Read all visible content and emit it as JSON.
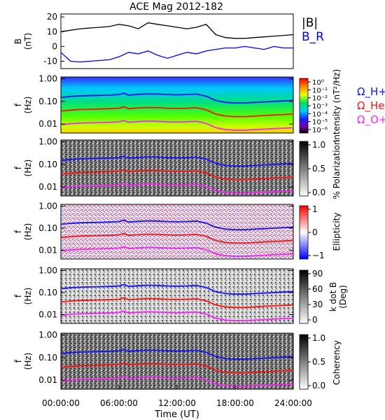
{
  "title": "ACE Mag 2012-182",
  "xlabel": "Time (UT)",
  "time_ticks": [
    "00:00:00",
    "06:00:00",
    "12:00:00",
    "18:00:00",
    "24:00:00"
  ],
  "freq_ticks": [
    "1.00",
    "0.10",
    "0.01"
  ],
  "colors": {
    "b_total": "#000000",
    "b_r": "#0000ff",
    "h_plus": "#1010ff",
    "he_plus": "#ff1010",
    "o_plus": "#ff20ff"
  },
  "chart_data": [
    {
      "type": "line",
      "name": "magnetic-field",
      "ylabel_top": "B",
      "ylabel_unit": "(nT)",
      "ylim": [
        -15,
        22
      ],
      "y_ticks": [
        20,
        10,
        0,
        -10
      ],
      "x_hours_range": [
        0,
        24
      ],
      "series": [
        {
          "name": "|B|",
          "x": [
            0,
            1,
            2,
            3,
            4,
            5,
            6,
            7,
            8,
            9,
            10,
            11,
            12,
            13,
            14,
            15,
            16,
            17,
            18,
            19,
            20,
            21,
            22,
            23,
            24
          ],
          "values": [
            10,
            11,
            12,
            12.5,
            13,
            13.5,
            15,
            14,
            12,
            16,
            15,
            14,
            13,
            12,
            13,
            15,
            8,
            6,
            5.5,
            5.5,
            6,
            6.5,
            7,
            7.5,
            8
          ]
        },
        {
          "name": "B_R",
          "x": [
            0,
            1,
            2,
            3,
            4,
            5,
            6,
            7,
            8,
            9,
            10,
            11,
            12,
            13,
            14,
            15,
            16,
            17,
            18,
            19,
            20,
            21,
            22,
            23,
            24
          ],
          "values": [
            -4,
            -10,
            -10.5,
            -10,
            -9.5,
            -9,
            -7,
            -4,
            -5,
            -3,
            -6,
            -8,
            -6,
            -4,
            -5,
            -3,
            -2,
            -1,
            -1,
            0,
            -1,
            -2,
            0,
            -1,
            -1
          ]
        }
      ],
      "legend": [
        "|B|",
        "B_R"
      ]
    },
    {
      "type": "heatmap",
      "name": "intensity",
      "colorbar_label": "Intensity (nT²/Hz)",
      "colorbar_ticks": [
        "10⁰",
        "10⁻¹",
        "10⁻²",
        "10⁻³",
        "10⁻⁴",
        "10⁻⁵",
        "10⁻⁶"
      ],
      "legend": [
        "Ω_H+",
        "Ω_He+",
        "Ω_O+"
      ]
    },
    {
      "type": "heatmap",
      "name": "polarization",
      "colorbar_label": "% Polarization",
      "colorbar_ticks": [
        "1.0",
        "0.5",
        "0.0"
      ]
    },
    {
      "type": "heatmap",
      "name": "ellipticity",
      "colorbar_label": "Ellipticity",
      "colorbar_ticks": [
        "1",
        "0",
        "−1"
      ]
    },
    {
      "type": "heatmap",
      "name": "k-dot-b",
      "colorbar_label": "k dot B",
      "colorbar_unit": "(Deg)",
      "colorbar_ticks": [
        "90",
        "60",
        "30",
        "0"
      ]
    },
    {
      "type": "heatmap",
      "name": "coherency",
      "colorbar_label": "Coherency",
      "colorbar_ticks": [
        "1.0",
        "0.5",
        "0.0"
      ]
    }
  ],
  "freq_axis": {
    "label_top": "f",
    "label_unit": "(Hz)",
    "ylim": [
      0.004,
      1.2
    ],
    "scale": "log"
  },
  "gyrofrequency_lines": {
    "x_hours": [
      0,
      1,
      2,
      3,
      4,
      5,
      6,
      6.5,
      7,
      8,
      9,
      10,
      11,
      12,
      13,
      14,
      15,
      16,
      17,
      18,
      19,
      20,
      21,
      22,
      23,
      24
    ],
    "h_plus_hz": [
      0.15,
      0.165,
      0.175,
      0.18,
      0.185,
      0.19,
      0.2,
      0.23,
      0.19,
      0.205,
      0.215,
      0.21,
      0.2,
      0.195,
      0.2,
      0.21,
      0.17,
      0.11,
      0.09,
      0.085,
      0.085,
      0.09,
      0.095,
      0.1,
      0.105,
      0.11
    ]
  }
}
